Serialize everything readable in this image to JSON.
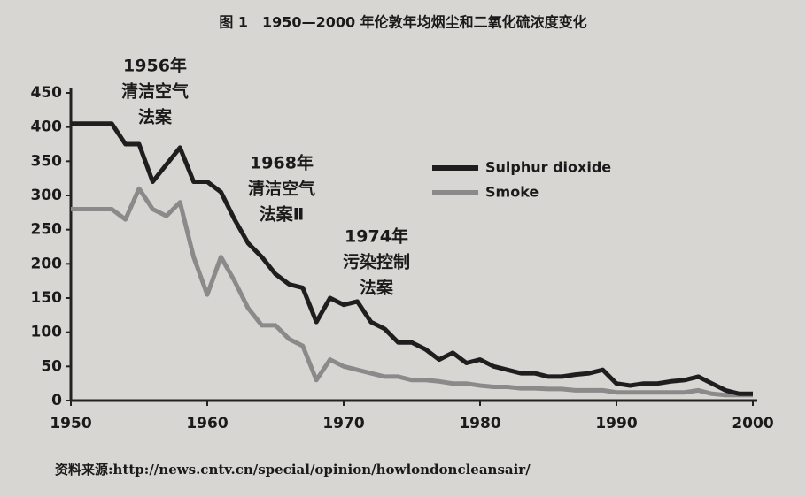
{
  "chart_data": {
    "type": "line",
    "title": "图 1　1950—2000 年伦敦年均烟尘和二氧化硫浓度变化",
    "source": "资料来源:http://news.cntv.cn/special/opinion/howlondoncleansair/",
    "x": [
      1950,
      1951,
      1952,
      1953,
      1954,
      1955,
      1956,
      1957,
      1958,
      1959,
      1960,
      1961,
      1962,
      1963,
      1964,
      1965,
      1966,
      1967,
      1968,
      1969,
      1970,
      1971,
      1972,
      1973,
      1974,
      1975,
      1976,
      1977,
      1978,
      1979,
      1980,
      1981,
      1982,
      1983,
      1984,
      1985,
      1986,
      1987,
      1988,
      1989,
      1990,
      1991,
      1992,
      1993,
      1994,
      1995,
      1996,
      1997,
      1998,
      1999,
      2000
    ],
    "series": [
      {
        "name": "Sulphur dioxide",
        "color": "#1e1e1e",
        "values": [
          405,
          405,
          405,
          405,
          375,
          375,
          320,
          345,
          370,
          320,
          320,
          305,
          265,
          230,
          210,
          185,
          170,
          165,
          115,
          150,
          140,
          145,
          115,
          105,
          85,
          85,
          75,
          60,
          70,
          55,
          60,
          50,
          45,
          40,
          40,
          35,
          35,
          38,
          40,
          45,
          25,
          22,
          25,
          25,
          28,
          30,
          35,
          25,
          15,
          10,
          10
        ]
      },
      {
        "name": "Smoke",
        "color": "#8a8a8a",
        "values": [
          280,
          280,
          280,
          280,
          265,
          310,
          280,
          270,
          290,
          210,
          155,
          210,
          175,
          135,
          110,
          110,
          90,
          80,
          30,
          60,
          50,
          45,
          40,
          35,
          35,
          30,
          30,
          28,
          25,
          25,
          22,
          20,
          20,
          18,
          18,
          17,
          17,
          15,
          15,
          15,
          12,
          12,
          12,
          12,
          12,
          12,
          15,
          10,
          8,
          8,
          8
        ]
      }
    ],
    "annotations": [
      {
        "lines": [
          "1956年",
          "清洁空气",
          "法案"
        ]
      },
      {
        "lines": [
          "1968年",
          "清洁空气",
          "法案Ⅱ"
        ]
      },
      {
        "lines": [
          "1974年",
          "污染控制",
          "法案"
        ]
      }
    ],
    "xlim": [
      1950,
      2000
    ],
    "xticks": [
      1950,
      1960,
      1970,
      1980,
      1990,
      2000
    ],
    "ylim": [
      0,
      450
    ],
    "yticks": [
      0,
      50,
      100,
      150,
      200,
      250,
      300,
      350,
      400,
      450
    ],
    "legend": "upper-right"
  }
}
